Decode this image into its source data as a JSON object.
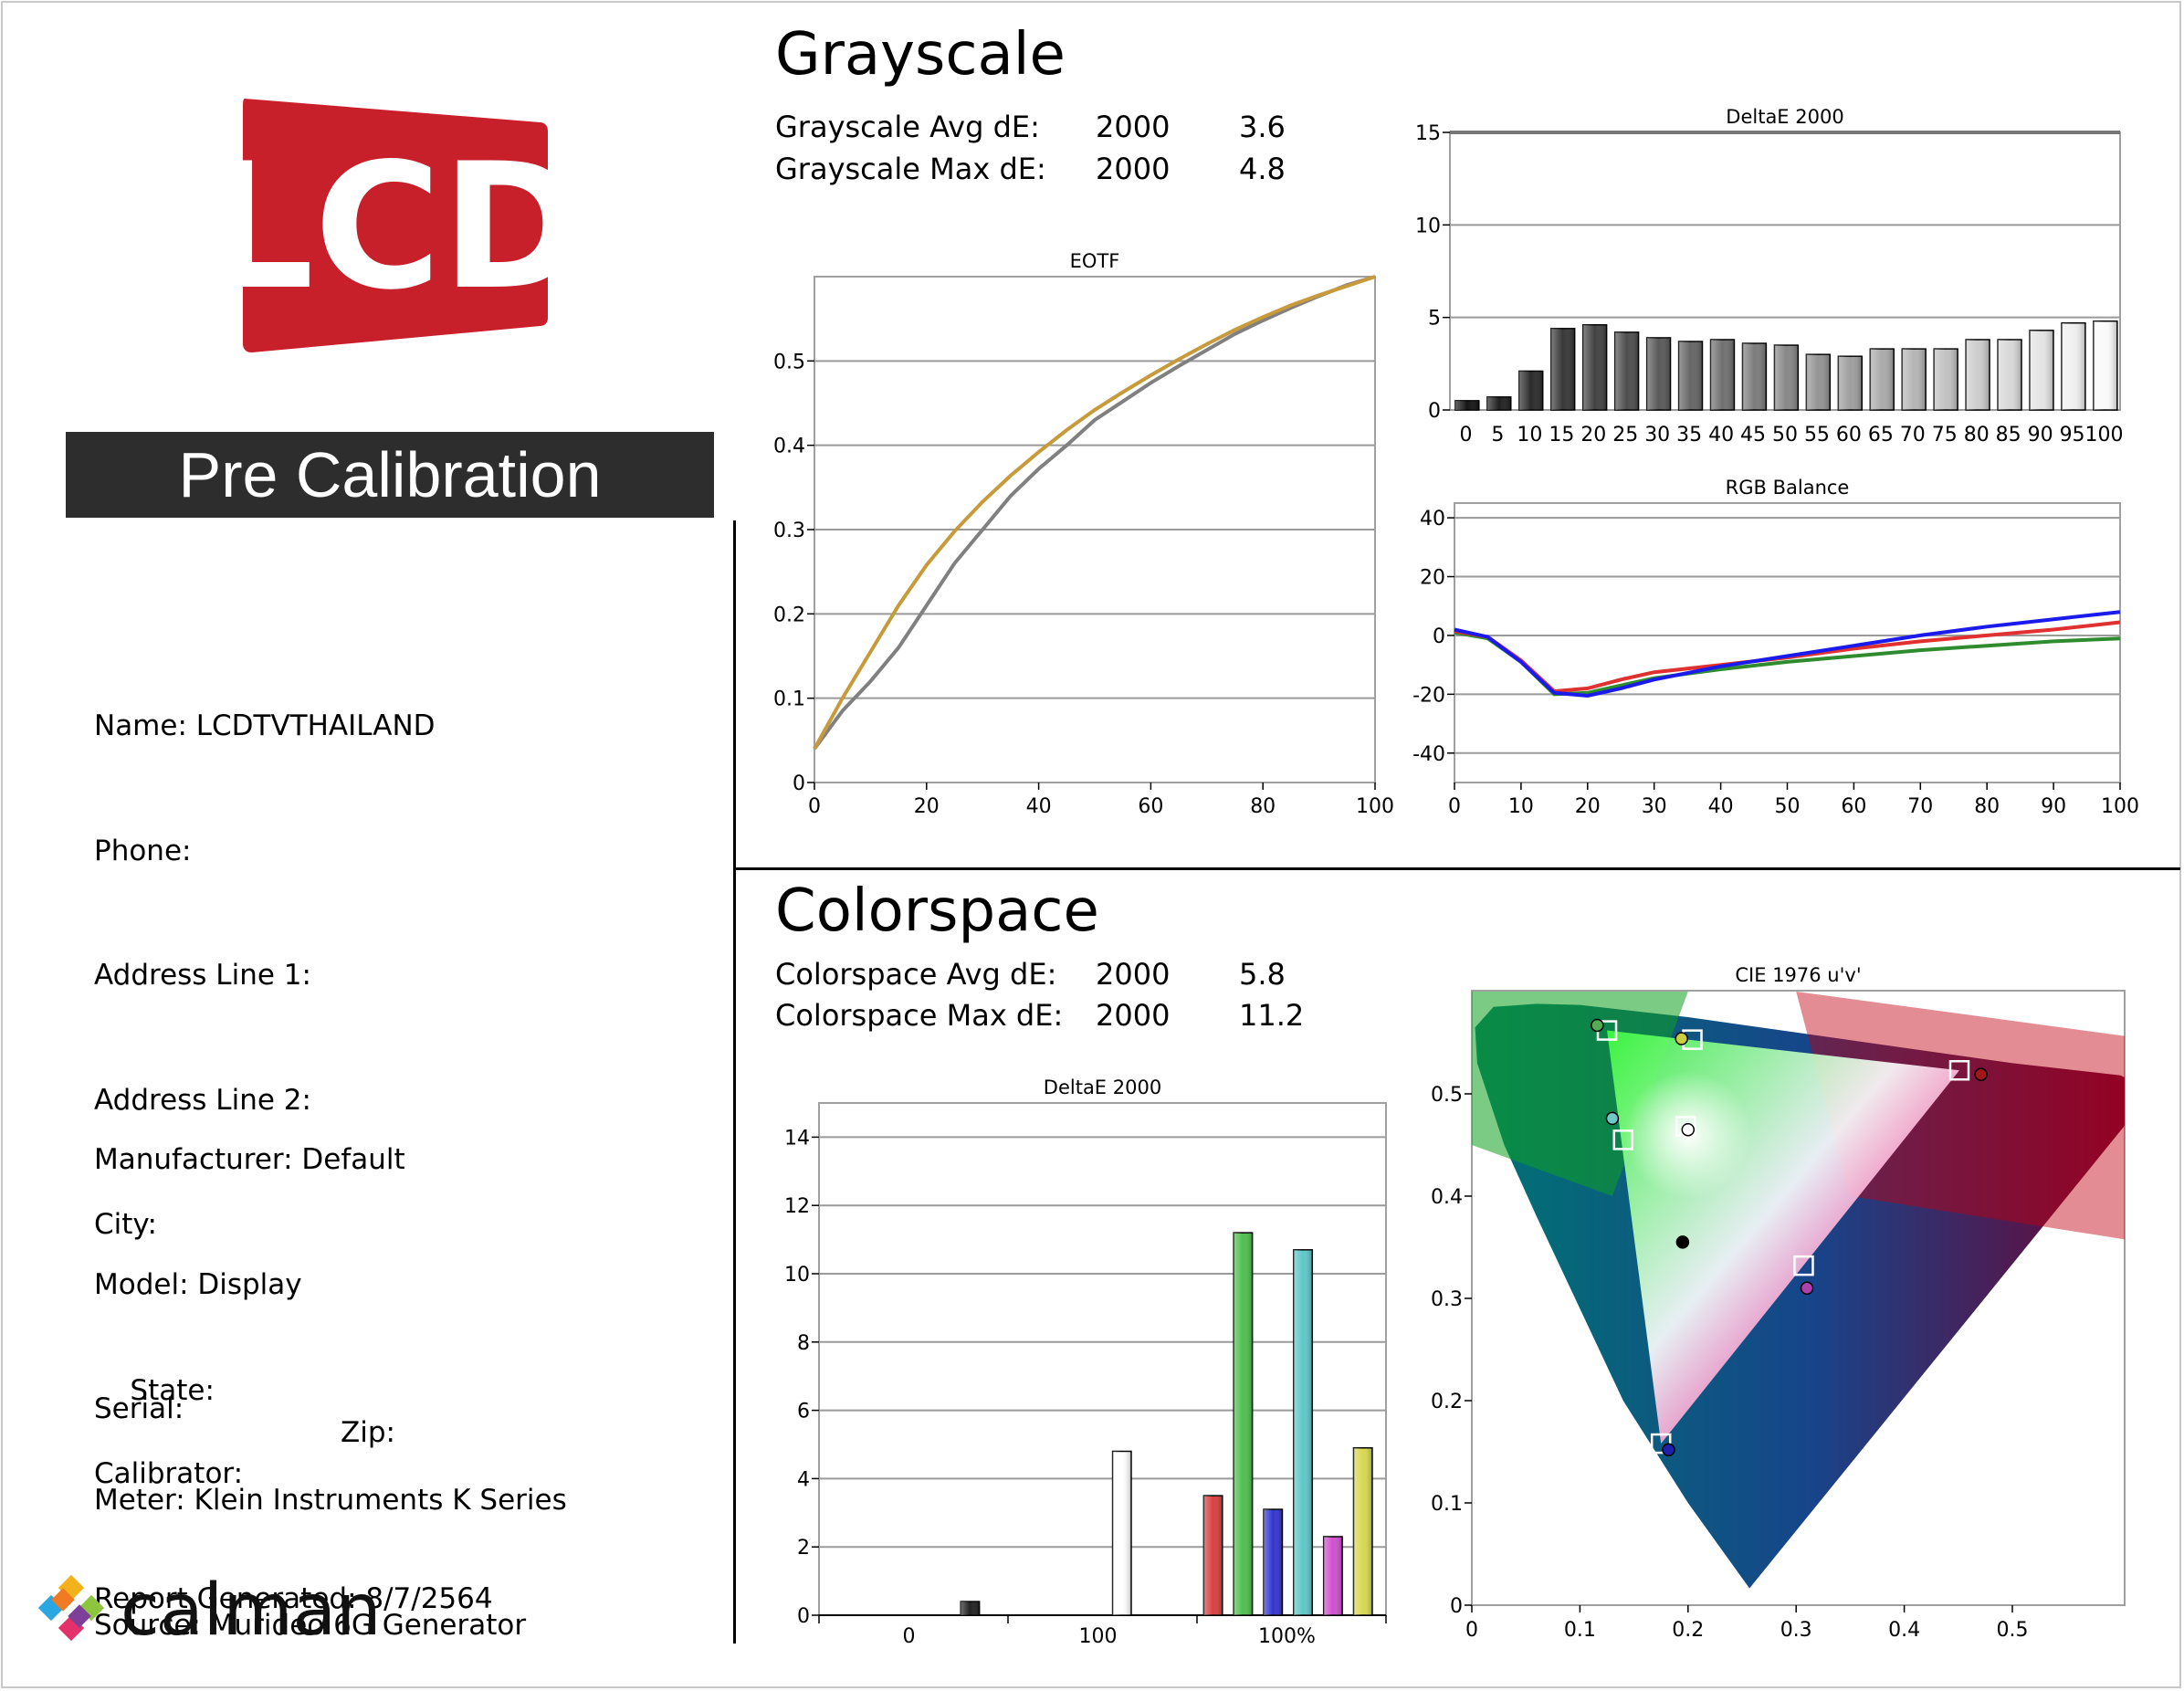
{
  "report": {
    "banner": "Pre Calibration",
    "logo_text": "LCD",
    "info": {
      "name": "Name: LCDTVTHAILAND",
      "phone": "Phone:",
      "address1": "Address Line 1:",
      "address2": "Address Line 2:",
      "city": "City:",
      "state": "State:",
      "zip": "Zip:",
      "calibrator": "Calibrator:",
      "report_generated": "Report Generated: 8/7/2564",
      "manufacturer": "Manufacturer: Default",
      "model": "Model: Display",
      "serial": "Serial:",
      "meter": "Meter: Klein Instruments K Series",
      "source": "Source: Murideo 6G Generator"
    },
    "brand": "calman"
  },
  "grayscale": {
    "title": "Grayscale",
    "avg_label": "Grayscale Avg dE:",
    "avg_std": "2000",
    "avg_value": "3.6",
    "max_label": "Grayscale Max dE:",
    "max_std": "2000",
    "max_value": "4.8"
  },
  "colorspace": {
    "title": "Colorspace",
    "avg_label": "Colorspace Avg dE:",
    "avg_std": "2000",
    "avg_value": "5.8",
    "max_label": "Colorspace Max dE:",
    "max_std": "2000",
    "max_value": "11.2"
  },
  "chart_data": [
    {
      "id": "eotf",
      "type": "line",
      "title": "EOTF",
      "xlim": [
        0,
        100
      ],
      "ylim": [
        0,
        0.6
      ],
      "xticks": [
        0,
        20,
        40,
        60,
        80,
        100
      ],
      "yticks": [
        0,
        0.1,
        0.2,
        0.3,
        0.4,
        0.5
      ],
      "ytick_labels": [
        "0",
        "0.1",
        "0.2",
        "0.3",
        "0.4",
        "0.5"
      ],
      "series": [
        {
          "color": "#808080",
          "x": [
            0,
            5,
            10,
            15,
            20,
            25,
            30,
            35,
            40,
            45,
            50,
            55,
            60,
            65,
            70,
            75,
            80,
            85,
            90,
            95,
            100
          ],
          "y": [
            0.04,
            0.085,
            0.12,
            0.16,
            0.21,
            0.26,
            0.3,
            0.34,
            0.372,
            0.4,
            0.43,
            0.452,
            0.474,
            0.494,
            0.513,
            0.532,
            0.548,
            0.563,
            0.577,
            0.59,
            0.6
          ]
        },
        {
          "color": "#c79a3b",
          "x": [
            0,
            5,
            10,
            15,
            20,
            25,
            30,
            35,
            40,
            45,
            50,
            55,
            60,
            65,
            70,
            75,
            80,
            85,
            90,
            95,
            100
          ],
          "y": [
            0.04,
            0.1,
            0.155,
            0.21,
            0.258,
            0.298,
            0.333,
            0.364,
            0.392,
            0.418,
            0.442,
            0.463,
            0.483,
            0.502,
            0.52,
            0.537,
            0.552,
            0.566,
            0.578,
            0.589,
            0.6
          ]
        }
      ]
    },
    {
      "id": "grayscale_de",
      "type": "bar",
      "title": "DeltaE 2000",
      "categories": [
        "0",
        "5",
        "10",
        "15",
        "20",
        "25",
        "30",
        "35",
        "40",
        "45",
        "50",
        "55",
        "60",
        "65",
        "70",
        "75",
        "80",
        "85",
        "90",
        "95",
        "100"
      ],
      "values": [
        0.5,
        0.7,
        2.1,
        4.4,
        4.6,
        4.2,
        3.9,
        3.7,
        3.8,
        3.6,
        3.5,
        3.0,
        2.9,
        3.3,
        3.3,
        3.3,
        3.8,
        3.8,
        4.3,
        4.7,
        4.8
      ],
      "ylim": [
        0,
        15
      ],
      "yticks": [
        0,
        5,
        10,
        15
      ]
    },
    {
      "id": "rgb_balance",
      "type": "line",
      "title": "RGB Balance",
      "xlim": [
        0,
        100
      ],
      "ylim": [
        -50,
        45
      ],
      "xticks": [
        0,
        10,
        20,
        30,
        40,
        50,
        60,
        70,
        80,
        90,
        100
      ],
      "yticks": [
        -40,
        -20,
        0,
        20,
        40
      ],
      "series": [
        {
          "color": "#2e8b2e",
          "x": [
            0,
            5,
            10,
            15,
            20,
            25,
            30,
            40,
            50,
            60,
            70,
            80,
            90,
            100
          ],
          "y": [
            1,
            -1,
            -9,
            -20,
            -19.5,
            -17,
            -14.5,
            -11.5,
            -9,
            -7,
            -5,
            -3.5,
            -2,
            -1
          ]
        },
        {
          "color": "#e03030",
          "x": [
            0,
            5,
            10,
            15,
            20,
            25,
            30,
            40,
            50,
            60,
            70,
            80,
            90,
            100
          ],
          "y": [
            1.5,
            -0.5,
            -8.5,
            -19,
            -18,
            -15,
            -12.5,
            -10,
            -7.5,
            -4.5,
            -2,
            0,
            2,
            4.5
          ]
        },
        {
          "color": "#1a1aee",
          "x": [
            0,
            5,
            10,
            15,
            20,
            25,
            30,
            40,
            50,
            60,
            70,
            80,
            90,
            100
          ],
          "y": [
            2,
            -0.5,
            -9,
            -19.5,
            -20.5,
            -18,
            -15,
            -10.5,
            -7,
            -3.5,
            0,
            3,
            5.5,
            8
          ]
        }
      ]
    },
    {
      "id": "colorspace_de",
      "type": "bar",
      "title": "DeltaE 2000",
      "xtick_labels": [
        "0",
        "100",
        "100%"
      ],
      "ylim": [
        0,
        15
      ],
      "yticks": [
        0,
        2,
        4,
        6,
        8,
        10,
        12,
        14
      ],
      "bars": [
        {
          "group": "0",
          "color": "#222222",
          "value": 0.4
        },
        {
          "group": "100",
          "color": "#ffffff",
          "value": 4.8
        },
        {
          "group": "100%",
          "color": "#d94040",
          "value": 3.5
        },
        {
          "group": "100%",
          "color": "#4fbf4f",
          "value": 11.2
        },
        {
          "group": "100%",
          "color": "#3535d0",
          "value": 3.1
        },
        {
          "group": "100%",
          "color": "#5ec8c8",
          "value": 10.7
        },
        {
          "group": "100%",
          "color": "#d050d0",
          "value": 2.3
        },
        {
          "group": "100%",
          "color": "#d8d850",
          "value": 4.9
        }
      ]
    },
    {
      "id": "cie",
      "type": "scatter",
      "title": "CIE 1976 u'v'",
      "xlim": [
        0,
        0.6
      ],
      "ylim": [
        0,
        0.6
      ],
      "xticks": [
        0,
        0.1,
        0.2,
        0.3,
        0.4,
        0.5
      ],
      "yticks": [
        0,
        0.1,
        0.2,
        0.3,
        0.4,
        0.5
      ],
      "targets": [
        {
          "u": 0.451,
          "v": 0.523
        },
        {
          "u": 0.125,
          "v": 0.562
        },
        {
          "u": 0.175,
          "v": 0.158
        },
        {
          "u": 0.1978,
          "v": 0.4683
        },
        {
          "u": 0.204,
          "v": 0.553
        },
        {
          "u": 0.14,
          "v": 0.455
        },
        {
          "u": 0.307,
          "v": 0.332
        }
      ],
      "measured": [
        {
          "u": 0.471,
          "v": 0.519,
          "color": "#a01818"
        },
        {
          "u": 0.116,
          "v": 0.567,
          "color": "#55aa55"
        },
        {
          "u": 0.182,
          "v": 0.152,
          "color": "#2020aa"
        },
        {
          "u": 0.2,
          "v": 0.465,
          "color": "#ffffff"
        },
        {
          "u": 0.194,
          "v": 0.554,
          "color": "#cccc40"
        },
        {
          "u": 0.13,
          "v": 0.476,
          "color": "#70c8c8"
        },
        {
          "u": 0.31,
          "v": 0.31,
          "color": "#b040b0"
        },
        {
          "u": 0.195,
          "v": 0.355,
          "color": "#000000"
        }
      ]
    }
  ]
}
